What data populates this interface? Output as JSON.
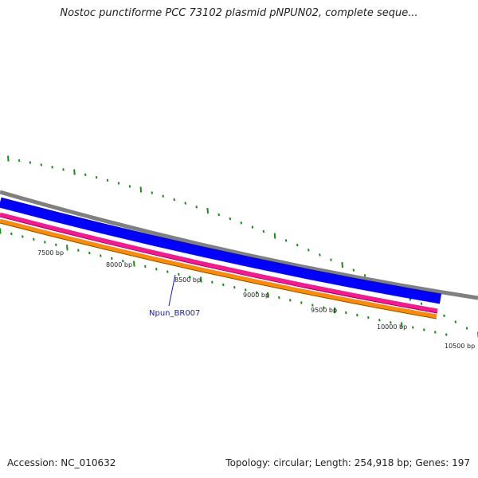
{
  "title": "Nostoc punctiforme PCC 73102 plasmid pNPUN02, complete seque...",
  "footer": {
    "accession": "Accession: NC_010632",
    "summary": "Topology: circular; Length: 254,918 bp; Genes: 197"
  },
  "map": {
    "tick_labels": [
      "7500 bp",
      "8000 bp",
      "8500 bp",
      "9000 bp",
      "9500 bp",
      "10000 bp",
      "10500 bp"
    ],
    "feature_label": "Npun_BR007",
    "colors": {
      "backbone": "#808080",
      "gene_track": "#0000ff",
      "magenta_track": "#ff1493",
      "orange_track": "#ff8c00",
      "ticks": "#1a8c1a",
      "feature_label": "#1a1ab0"
    }
  }
}
